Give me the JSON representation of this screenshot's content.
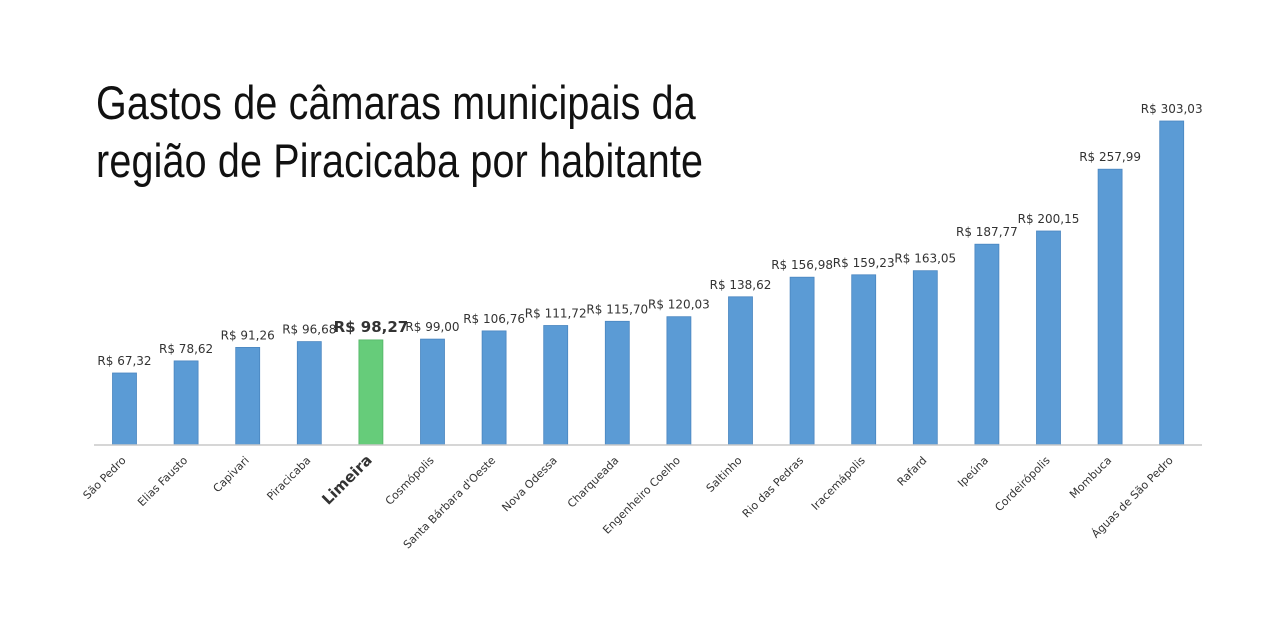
{
  "chart_data": {
    "type": "bar",
    "title_lines": [
      "Gastos de câmaras municipais da",
      "região de Piracicaba por habitante"
    ],
    "xlabel": "",
    "ylabel": "",
    "ylim": [
      0,
      320
    ],
    "grid": false,
    "legend": "none",
    "categories": [
      "São Pedro",
      "Elias Fausto",
      "Capivari",
      "Piracicaba",
      "Limeira",
      "Cosmópolis",
      "Santa Bárbara d'Oeste",
      "Nova Odessa",
      "Charqueada",
      "Engenheiro Coelho",
      "Saltinho",
      "Rio das Pedras",
      "Iracemápolis",
      "Rafard",
      "Ipeúna",
      "Cordeirópolis",
      "Mombuca",
      "Águas de São Pedro"
    ],
    "values": [
      67.32,
      78.62,
      91.26,
      96.68,
      98.27,
      99.0,
      106.76,
      111.72,
      115.7,
      120.03,
      138.62,
      156.98,
      159.23,
      163.05,
      187.77,
      200.15,
      257.99,
      303.03
    ],
    "value_labels": [
      "R$ 67,32",
      "R$ 78,62",
      "R$ 91,26",
      "R$ 96,68",
      "R$ 98,27",
      "R$ 99,00",
      "R$ 106,76",
      "R$ 111,72",
      "R$ 115,70",
      "R$ 120,03",
      "R$ 138,62",
      "R$ 156,98",
      "R$ 159,23",
      "R$ 163,05",
      "R$ 187,77",
      "R$ 200,15",
      "R$ 257,99",
      "R$ 303,03"
    ],
    "highlight_category": "Limeira",
    "colors": {
      "bar": "#5b9bd5",
      "bar_border": "#4a86c0",
      "highlight": "#66cc7a",
      "highlight_border": "#52b565",
      "axis": "#c8c8c8"
    }
  }
}
